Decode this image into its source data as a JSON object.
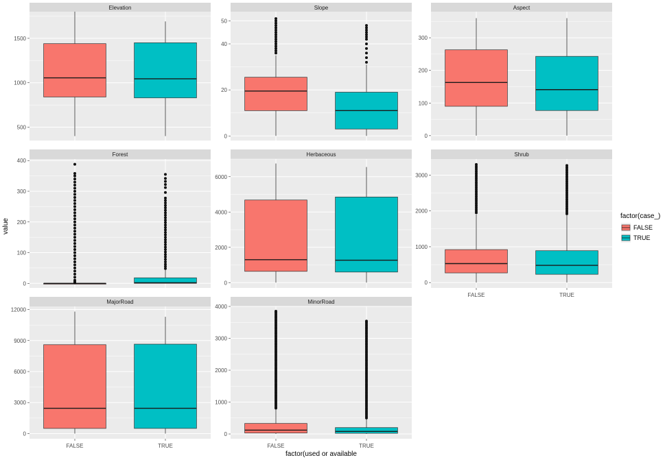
{
  "chart_data": {
    "type": "boxplot",
    "xlabel": "factor(used or available",
    "ylabel": "value",
    "categories": [
      "FALSE",
      "TRUE"
    ],
    "legend": {
      "title": "factor(case_)",
      "position": "right",
      "entries": [
        {
          "label": "FALSE",
          "color": "#F8766D"
        },
        {
          "label": "TRUE",
          "color": "#00BFC4"
        }
      ]
    },
    "grid": true,
    "panels": [
      {
        "name": "Elevation",
        "ylim": [
          350,
          1800
        ],
        "yticks": [
          500,
          1000,
          1500
        ],
        "boxes": [
          {
            "min": 400,
            "q1": 840,
            "median": 1055,
            "q3": 1440,
            "max": 1800,
            "outliers": []
          },
          {
            "min": 400,
            "q1": 830,
            "median": 1045,
            "q3": 1450,
            "max": 1690,
            "outliers": []
          }
        ]
      },
      {
        "name": "Slope",
        "ylim": [
          -2,
          54
        ],
        "yticks": [
          0,
          20,
          40,
          50
        ],
        "boxes": [
          {
            "min": 0,
            "q1": 11,
            "median": 19.5,
            "q3": 25.5,
            "max": 35,
            "outliers": [
              36,
              37,
              38,
              39,
              40,
              41,
              42,
              43,
              44,
              45,
              46,
              47,
              48,
              49,
              50,
              51
            ]
          },
          {
            "min": 0,
            "q1": 3,
            "median": 11,
            "q3": 19,
            "max": 31,
            "outliers": [
              32,
              34,
              36,
              38,
              40,
              42,
              43,
              44,
              45,
              46,
              47,
              48
            ]
          }
        ]
      },
      {
        "name": "Aspect",
        "ylim": [
          -15,
          380
        ],
        "yticks": [
          0,
          100,
          200,
          300
        ],
        "boxes": [
          {
            "min": 0,
            "q1": 90,
            "median": 163,
            "q3": 263,
            "max": 360,
            "outliers": []
          },
          {
            "min": 0,
            "q1": 77,
            "median": 141,
            "q3": 243,
            "max": 360,
            "outliers": []
          }
        ]
      },
      {
        "name": "Forest",
        "ylim": [
          -15,
          405
        ],
        "yticks": [
          0,
          100,
          200,
          300,
          400
        ],
        "boxes": [
          {
            "min": 0,
            "q1": 0,
            "median": 0,
            "q3": 0,
            "max": 0,
            "outliers": [
              2,
              5,
              10,
              20,
              30,
              40,
              50,
              60,
              70,
              80,
              90,
              100,
              110,
              120,
              130,
              140,
              150,
              160,
              170,
              180,
              190,
              200,
              210,
              220,
              230,
              240,
              250,
              260,
              270,
              280,
              290,
              300,
              310,
              320,
              330,
              340,
              350,
              358,
              388
            ]
          },
          {
            "min": 0,
            "q1": 0,
            "median": 2,
            "q3": 18,
            "max": 44,
            "outliers": [
              48,
              55,
              62,
              70,
              78,
              86,
              94,
              102,
              110,
              118,
              126,
              134,
              142,
              150,
              158,
              166,
              174,
              182,
              190,
              198,
              206,
              214,
              222,
              230,
              238,
              246,
              254,
              262,
              270,
              278,
              296,
              312,
              322,
              332,
              342,
              355
            ]
          }
        ]
      },
      {
        "name": "Herbaceous",
        "ylim": [
          -300,
          7000
        ],
        "yticks": [
          0,
          2000,
          4000,
          6000
        ],
        "boxes": [
          {
            "min": 0,
            "q1": 640,
            "median": 1300,
            "q3": 4680,
            "max": 6750,
            "outliers": []
          },
          {
            "min": 0,
            "q1": 600,
            "median": 1270,
            "q3": 4850,
            "max": 6550,
            "outliers": []
          }
        ]
      },
      {
        "name": "Shrub",
        "ylim": [
          -150,
          3450
        ],
        "yticks": [
          0,
          1000,
          2000,
          3000
        ],
        "boxes": [
          {
            "min": 0,
            "q1": 270,
            "median": 530,
            "q3": 920,
            "max": 1900,
            "outliers": [
              1950,
              2000,
              2050,
              2100,
              2150,
              2200,
              2250,
              2300,
              2350,
              2400,
              2450,
              2500,
              2550,
              2600,
              2650,
              2700,
              2750,
              2800,
              2850,
              2900,
              2950,
              3000,
              3050,
              3100,
              3150,
              3200,
              3250,
              3300
            ]
          },
          {
            "min": 0,
            "q1": 230,
            "median": 480,
            "q3": 890,
            "max": 1880,
            "outliers": [
              1920,
              1970,
              2020,
              2070,
              2120,
              2170,
              2220,
              2270,
              2320,
              2370,
              2420,
              2470,
              2520,
              2570,
              2620,
              2670,
              2720,
              2770,
              2820,
              2870,
              2920,
              2970,
              3020,
              3070,
              3120,
              3170,
              3220,
              3270
            ]
          }
        ]
      },
      {
        "name": "MajorRoad",
        "ylim": [
          -500,
          12300
        ],
        "yticks": [
          0,
          3000,
          6000,
          9000,
          12000
        ],
        "boxes": [
          {
            "min": 0,
            "q1": 500,
            "median": 2450,
            "q3": 8600,
            "max": 11800,
            "outliers": []
          },
          {
            "min": 0,
            "q1": 500,
            "median": 2450,
            "q3": 8650,
            "max": 11300,
            "outliers": []
          }
        ]
      },
      {
        "name": "MinorRoad",
        "ylim": [
          -150,
          4000
        ],
        "yticks": [
          0,
          1000,
          2000,
          3000,
          4000
        ],
        "boxes": [
          {
            "min": 0,
            "q1": 30,
            "median": 120,
            "q3": 330,
            "max": 780,
            "outliers": [
              810,
              850,
              900,
              950,
              1000,
              1050,
              1100,
              1150,
              1200,
              1250,
              1300,
              1350,
              1400,
              1450,
              1500,
              1550,
              1600,
              1650,
              1700,
              1750,
              1800,
              1850,
              1900,
              1950,
              2000,
              2050,
              2100,
              2150,
              2200,
              2250,
              2300,
              2350,
              2400,
              2450,
              2500,
              2550,
              2600,
              2650,
              2700,
              2750,
              2800,
              2850,
              2900,
              2950,
              3000,
              3050,
              3100,
              3150,
              3200,
              3250,
              3300,
              3350,
              3400,
              3450,
              3500,
              3550,
              3600,
              3650,
              3700,
              3750,
              3800,
              3850
            ]
          },
          {
            "min": 0,
            "q1": 20,
            "median": 80,
            "q3": 200,
            "max": 460,
            "outliers": [
              500,
              550,
              600,
              650,
              700,
              750,
              800,
              850,
              900,
              950,
              1000,
              1050,
              1100,
              1150,
              1200,
              1250,
              1300,
              1350,
              1400,
              1450,
              1500,
              1550,
              1600,
              1650,
              1700,
              1750,
              1800,
              1850,
              1900,
              1950,
              2000,
              2050,
              2100,
              2150,
              2200,
              2250,
              2300,
              2350,
              2400,
              2450,
              2500,
              2550,
              2600,
              2650,
              2700,
              2750,
              2800,
              2850,
              2900,
              2950,
              3000,
              3050,
              3100,
              3150,
              3200,
              3250,
              3300,
              3350,
              3400,
              3450,
              3500,
              3540
            ]
          }
        ]
      }
    ]
  }
}
